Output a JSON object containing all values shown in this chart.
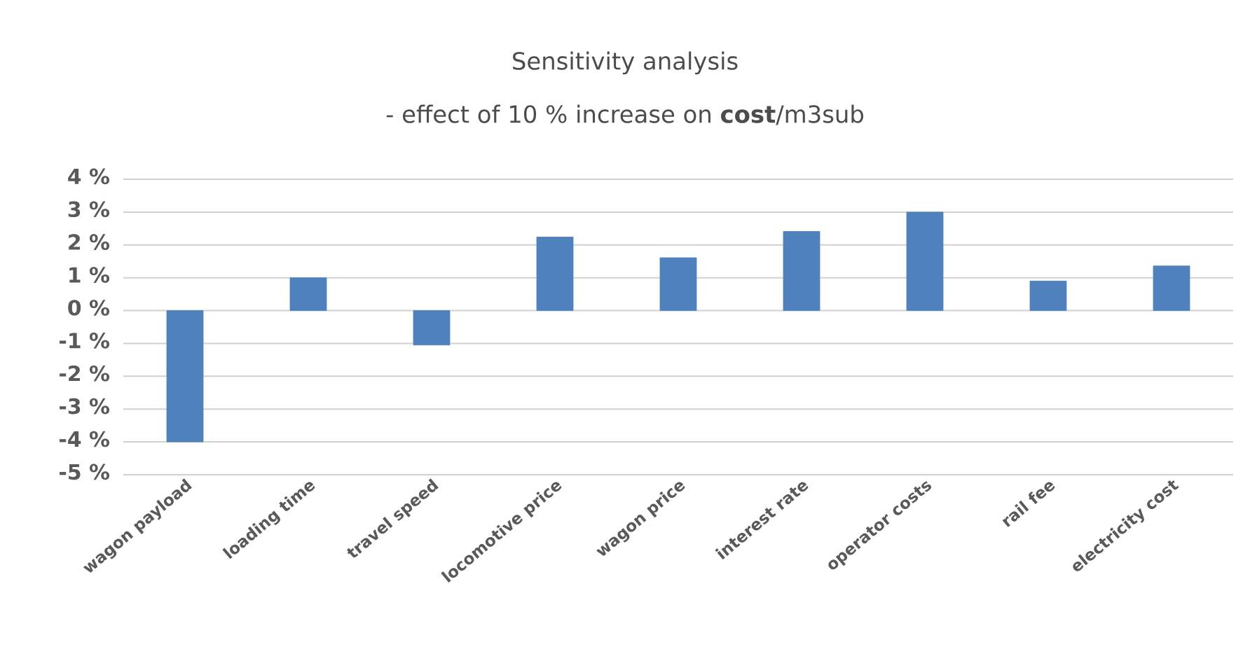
{
  "chart_data": {
    "type": "bar",
    "title": "Sensitivity analysis",
    "subtitle": "- effect of 10 % increase on **cost**/m3sub",
    "categories": [
      "wagon payload",
      "loading time",
      "travel speed",
      "locomotive price",
      "wagon price",
      "interest rate",
      "operator costs",
      "rail fee",
      "electricity cost"
    ],
    "values": [
      -4.0,
      1.0,
      -1.05,
      2.24,
      1.61,
      2.41,
      3.0,
      0.9,
      1.36
    ],
    "color": "#4f81bd",
    "ylim": [
      -5,
      4
    ],
    "yticks": [
      {
        "value": -5,
        "label": "-5 %"
      },
      {
        "value": -4,
        "label": "-4 %"
      },
      {
        "value": -3,
        "label": "-3 %"
      },
      {
        "value": -2,
        "label": "-2 %"
      },
      {
        "value": -1,
        "label": "-1 %"
      },
      {
        "value": 0,
        "label": "0 %"
      },
      {
        "value": 1,
        "label": "1 %"
      },
      {
        "value": 2,
        "label": "2 %"
      },
      {
        "value": 3,
        "label": "3 %"
      },
      {
        "value": 4,
        "label": "4 %"
      }
    ],
    "grid": "y"
  }
}
